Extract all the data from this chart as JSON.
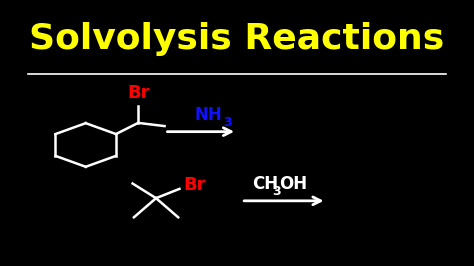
{
  "background_color": "#000000",
  "title": "Solvolysis Reactions",
  "title_color": "#FFFF00",
  "title_fontsize": 26,
  "line_color": "#FFFFFF",
  "molecule_color": "#FFFFFF",
  "br_color": "#FF0000",
  "nh3_color": "#1111FF",
  "ch3oh_color": "#FFFFFF",
  "arrow_color": "#FFFFFF",
  "separator_color": "#FFFFFF",
  "figsize": [
    4.74,
    2.66
  ],
  "dpi": 100,
  "xlim": [
    0,
    10
  ],
  "ylim": [
    0,
    10
  ]
}
